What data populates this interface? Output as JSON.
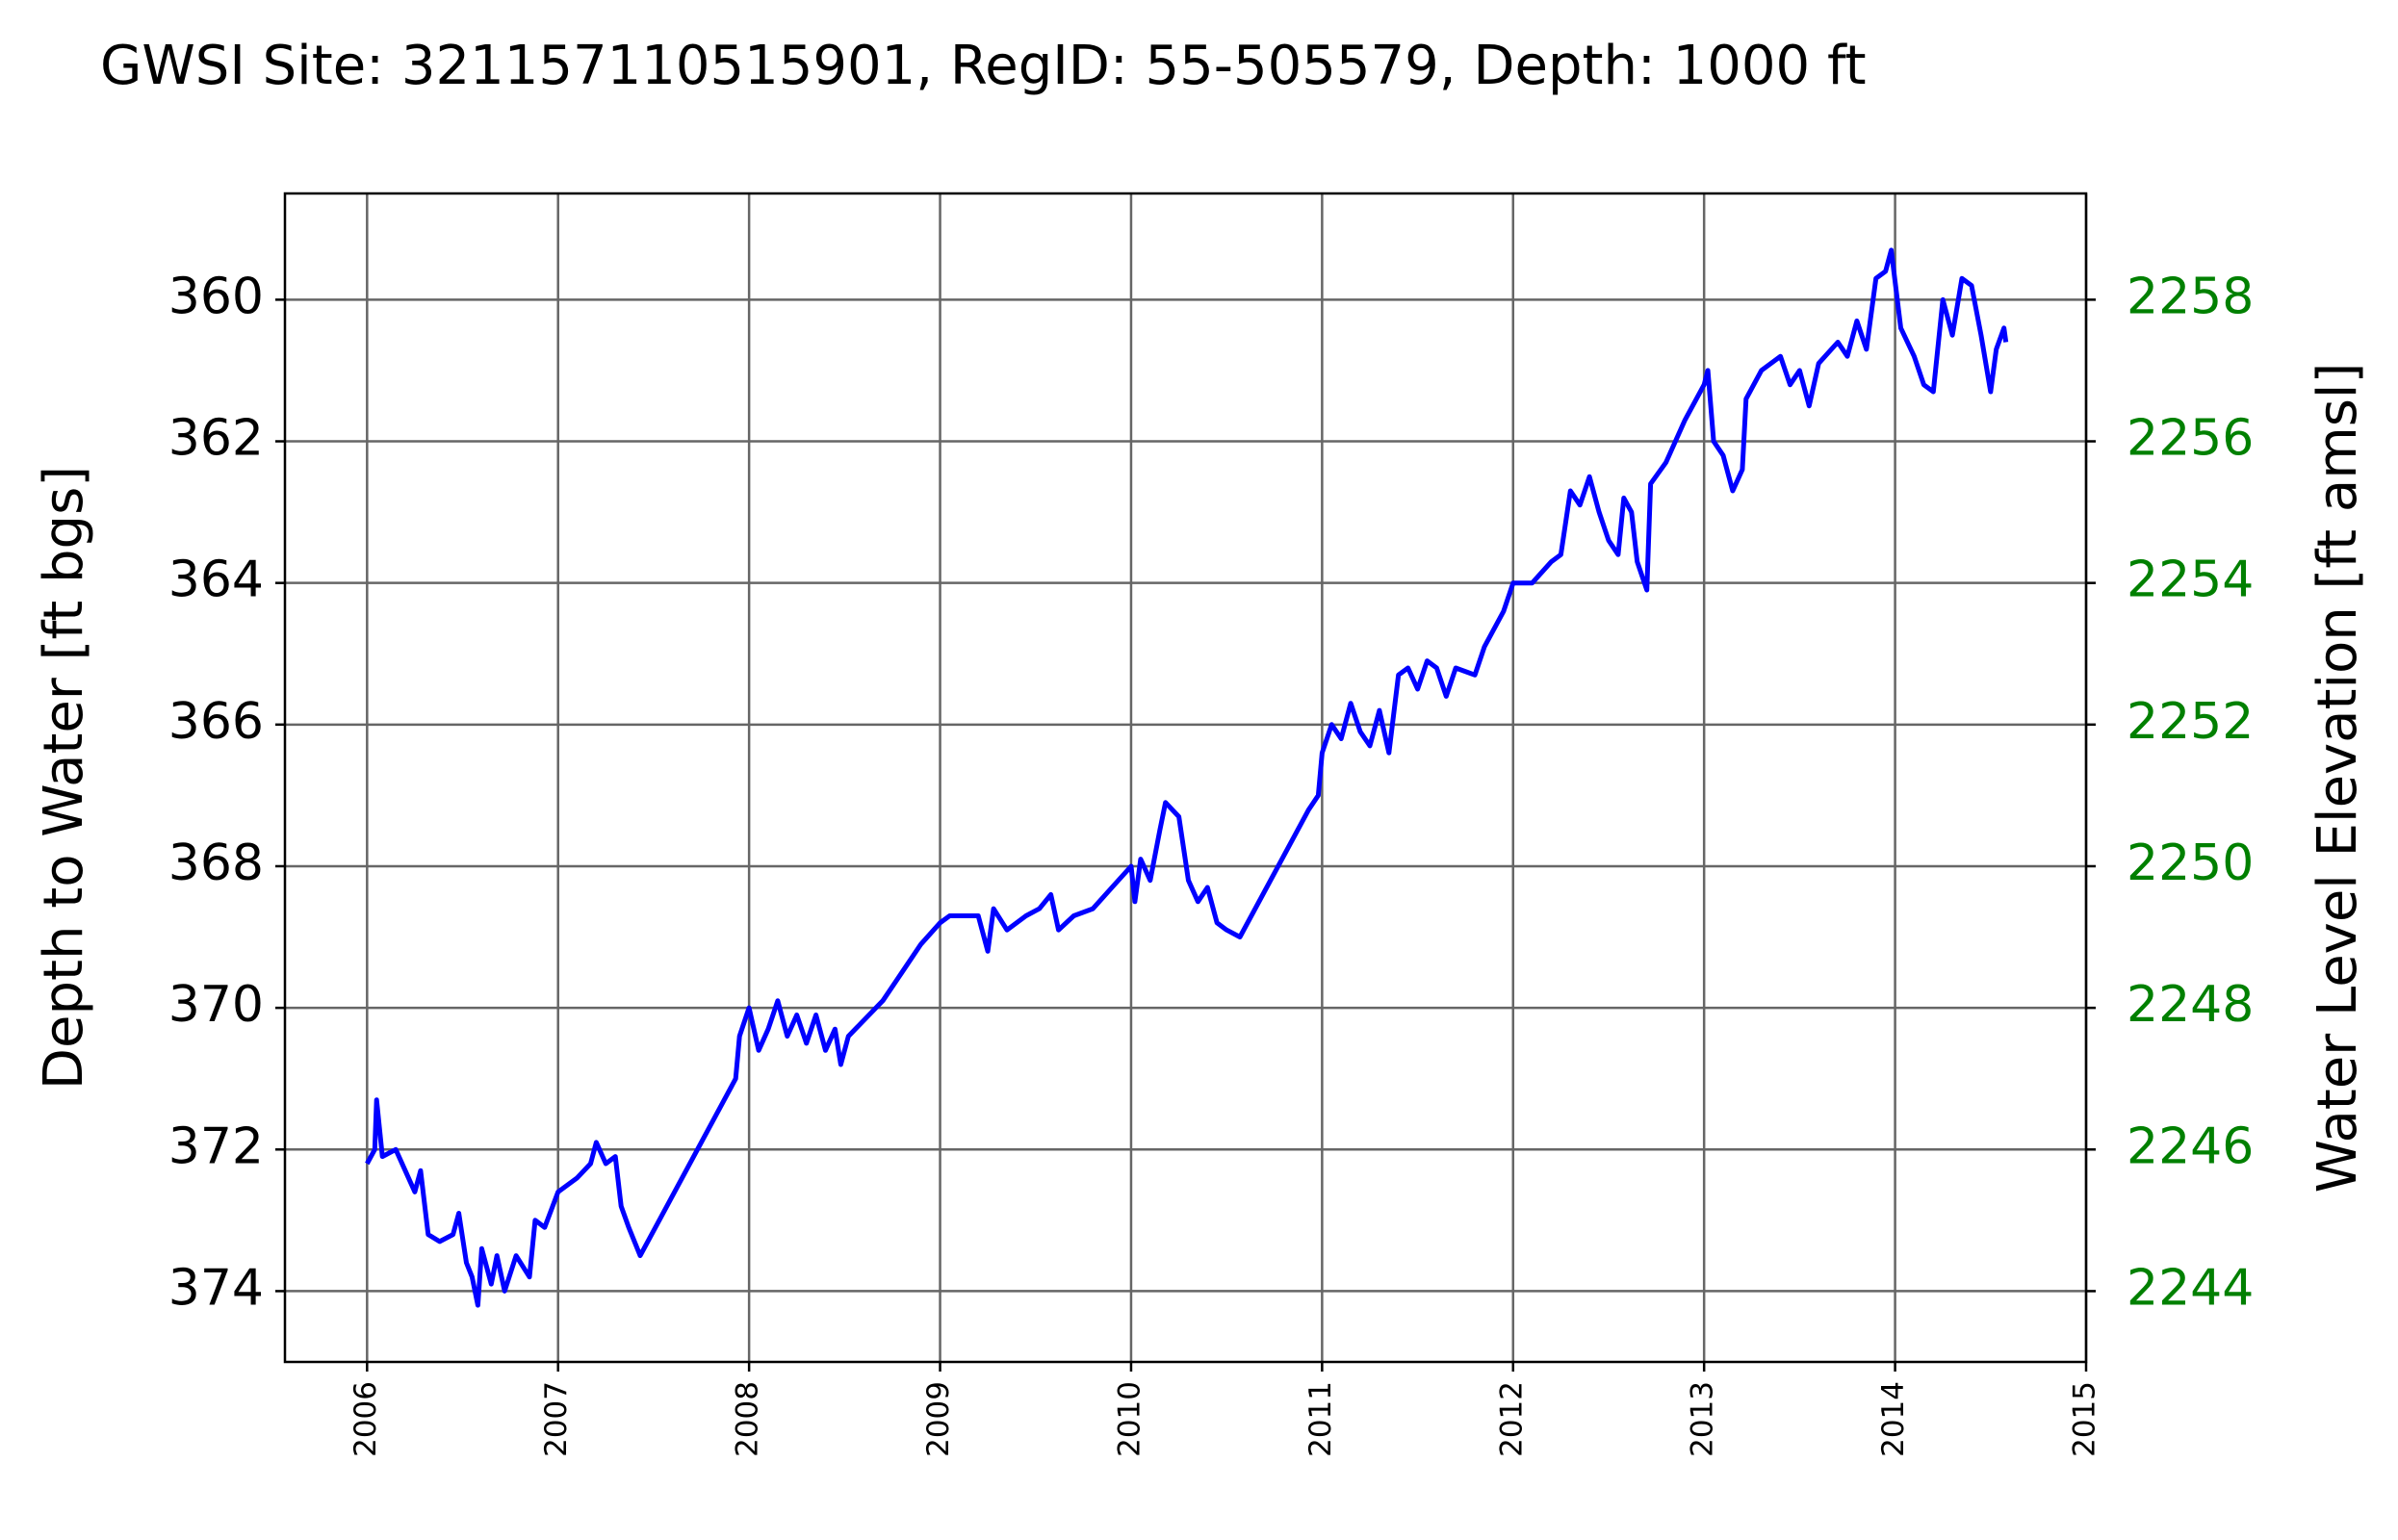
{
  "chart_data": {
    "type": "line",
    "title": "GWSI Site: 321157110515901, RegID: 55-505579, Depth: 1000 ft",
    "ylabel": "Depth to Water [ft bgs]",
    "y2label": "Water Level Elevation [ft amsl]",
    "color": "#0000ff",
    "y2color": "#008000",
    "grid": true,
    "y_inverted": true,
    "xlim": [
      2005.57,
      2015
    ],
    "xticks": [
      2006,
      2007,
      2008,
      2009,
      2010,
      2011,
      2012,
      2013,
      2014,
      2015
    ],
    "ylim": [
      358.5,
      375
    ],
    "yticks": [
      360,
      362,
      364,
      366,
      368,
      370,
      372,
      374
    ],
    "y2lim": [
      2243,
      2259.5
    ],
    "y2ticks": [
      2244,
      2246,
      2248,
      2250,
      2252,
      2254,
      2256,
      2258
    ],
    "x": [
      2006.0,
      2006.04,
      2006.05,
      2006.08,
      2006.15,
      2006.2,
      2006.25,
      2006.28,
      2006.32,
      2006.38,
      2006.45,
      2006.48,
      2006.52,
      2006.55,
      2006.58,
      2006.6,
      2006.65,
      2006.68,
      2006.72,
      2006.78,
      2006.85,
      2006.88,
      2006.93,
      2007.0,
      2007.1,
      2007.17,
      2007.2,
      2007.25,
      2007.3,
      2007.33,
      2007.37,
      2007.43,
      2007.93,
      2007.95,
      2008.0,
      2008.05,
      2008.1,
      2008.15,
      2008.2,
      2008.25,
      2008.3,
      2008.35,
      2008.4,
      2008.45,
      2008.48,
      2008.52,
      2008.7,
      2008.8,
      2008.9,
      2009.0,
      2009.05,
      2009.2,
      2009.25,
      2009.28,
      2009.35,
      2009.45,
      2009.52,
      2009.58,
      2009.62,
      2009.7,
      2009.8,
      2009.9,
      2010.0,
      2010.02,
      2010.05,
      2010.1,
      2010.15,
      2010.18,
      2010.25,
      2010.3,
      2010.35,
      2010.4,
      2010.45,
      2010.5,
      2010.57,
      2010.93,
      2010.98,
      2011.0,
      2011.05,
      2011.1,
      2011.15,
      2011.2,
      2011.25,
      2011.3,
      2011.35,
      2011.4,
      2011.45,
      2011.5,
      2011.55,
      2011.6,
      2011.65,
      2011.7,
      2011.8,
      2011.85,
      2011.95,
      2012.0,
      2012.1,
      2012.2,
      2012.25,
      2012.3,
      2012.35,
      2012.4,
      2012.45,
      2012.5,
      2012.55,
      2012.58,
      2012.62,
      2012.65,
      2012.7,
      2012.72,
      2012.8,
      2012.85,
      2012.9,
      2013.0,
      2013.02,
      2013.05,
      2013.1,
      2013.15,
      2013.2,
      2013.22,
      2013.3,
      2013.4,
      2013.45,
      2013.5,
      2013.55,
      2013.6,
      2013.7,
      2013.75,
      2013.8,
      2013.85,
      2013.9,
      2013.95,
      2013.98,
      2014.03,
      2014.1,
      2014.15,
      2014.2,
      2014.25,
      2014.3,
      2014.35,
      2014.4,
      2014.45,
      2014.5,
      2014.53,
      2014.57,
      2014.58
    ],
    "values": [
      372.2,
      372.0,
      371.3,
      372.1,
      372.0,
      372.3,
      372.6,
      372.3,
      373.2,
      373.3,
      373.2,
      372.9,
      373.6,
      373.8,
      374.2,
      373.4,
      373.9,
      373.5,
      374.0,
      373.5,
      373.8,
      373.0,
      373.1,
      372.6,
      372.4,
      372.2,
      371.9,
      372.2,
      372.1,
      372.8,
      373.1,
      373.5,
      371.0,
      370.4,
      370.0,
      370.6,
      370.3,
      369.9,
      370.4,
      370.1,
      370.5,
      370.1,
      370.6,
      370.3,
      370.8,
      370.4,
      369.9,
      369.5,
      369.1,
      368.8,
      368.7,
      368.7,
      369.2,
      368.6,
      368.9,
      368.7,
      368.6,
      368.4,
      368.9,
      368.7,
      368.6,
      368.3,
      368.0,
      368.5,
      367.9,
      368.2,
      367.5,
      367.1,
      367.3,
      368.2,
      368.5,
      368.3,
      368.8,
      368.9,
      369.0,
      367.2,
      367.0,
      366.4,
      366.0,
      366.2,
      365.7,
      366.1,
      366.3,
      365.8,
      366.4,
      365.3,
      365.2,
      365.5,
      365.1,
      365.2,
      365.6,
      365.2,
      365.3,
      364.9,
      364.4,
      364.0,
      364.0,
      363.7,
      363.6,
      362.7,
      362.9,
      362.5,
      363.0,
      363.4,
      363.6,
      362.8,
      363.0,
      363.7,
      364.1,
      362.6,
      362.3,
      362.0,
      361.7,
      361.2,
      361.0,
      362.0,
      362.2,
      362.7,
      362.4,
      361.4,
      361.0,
      360.8,
      361.2,
      361.0,
      361.5,
      360.9,
      360.6,
      360.8,
      360.3,
      360.7,
      359.7,
      359.6,
      359.3,
      360.4,
      360.8,
      361.2,
      361.3,
      360.0,
      360.5,
      359.7,
      359.8,
      360.5,
      361.3,
      360.7,
      360.4,
      360.6
    ]
  }
}
